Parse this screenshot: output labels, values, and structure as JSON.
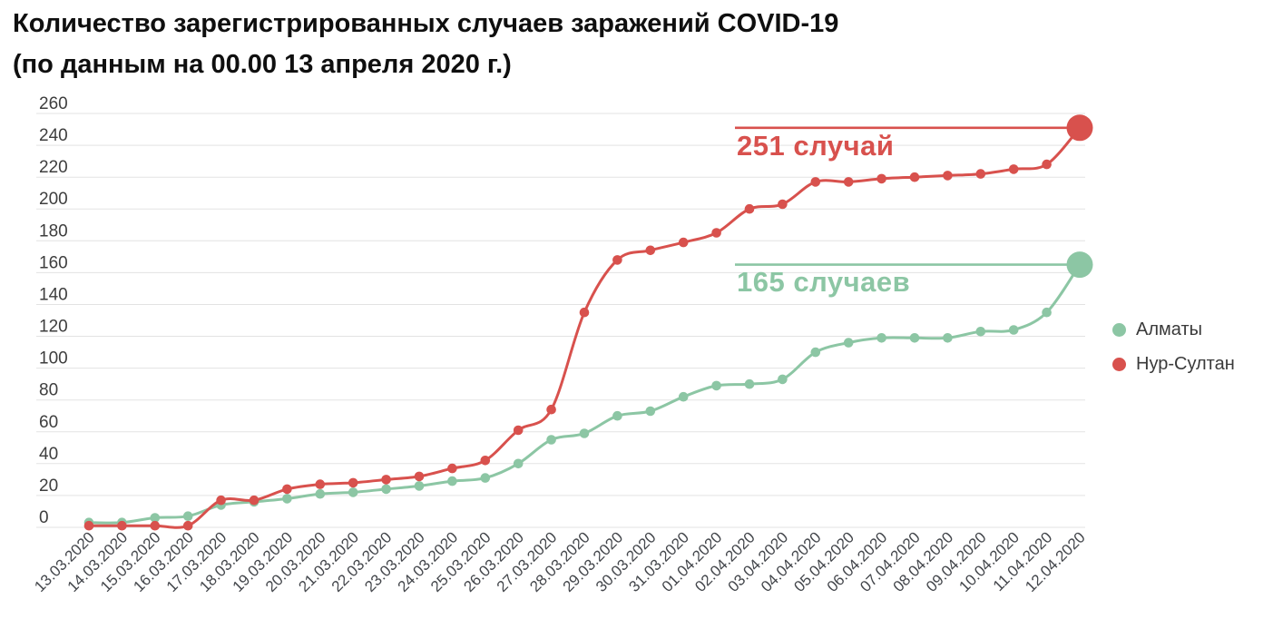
{
  "title": {
    "line1": "Количество зарегистрированных случаев заражений COVID-19",
    "line2": "(по данным на 00.00 13 апреля 2020 г.)"
  },
  "colors": {
    "almaty": "#8cc6a4",
    "nur_sultan": "#d8514d",
    "grid": "#e3e3e3",
    "y_label_text": "#3e3e3e",
    "x_label_text": "#43464b",
    "title_text": "#0f0f0f",
    "background": "#ffffff"
  },
  "legend": {
    "items": [
      {
        "label": "Алматы",
        "color": "#8cc6a4"
      },
      {
        "label": "Нур-Султан",
        "color": "#d8514d"
      }
    ]
  },
  "annotations": [
    {
      "label": "251 случай",
      "series": "Нур-Султан",
      "value": 251,
      "color": "#d8514d"
    },
    {
      "label": "165 случаев",
      "series": "Алматы",
      "value": 165,
      "color": "#8cc6a4"
    }
  ],
  "chart_data": {
    "type": "line",
    "title": "Количество зарегистрированных случаев заражений COVID-19",
    "subtitle": "(по данным на 00.00 13 апреля 2020 г.)",
    "xlabel": "",
    "ylabel": "",
    "ylim": [
      0,
      260
    ],
    "ytick_step": 20,
    "grid": "horizontal",
    "legend_position": "right",
    "categories": [
      "13.03.2020",
      "14.03.2020",
      "15.03.2020",
      "16.03.2020",
      "17.03.2020",
      "18.03.2020",
      "19.03.2020",
      "20.03.2020",
      "21.03.2020",
      "22.03.2020",
      "23.03.2020",
      "24.03.2020",
      "25.03.2020",
      "26.03.2020",
      "27.03.2020",
      "28.03.2020",
      "29.03.2020",
      "30.03.2020",
      "31.03.2020",
      "01.04.2020",
      "02.04.2020",
      "03.04.2020",
      "04.04.2020",
      "05.04.2020",
      "06.04.2020",
      "07.04.2020",
      "08.04.2020",
      "09.04.2020",
      "10.04.2020",
      "11.04.2020",
      "12.04.2020"
    ],
    "series": [
      {
        "name": "Алматы",
        "color": "#8cc6a4",
        "values": [
          3,
          3,
          6,
          7,
          14,
          16,
          18,
          21,
          22,
          24,
          26,
          29,
          31,
          40,
          55,
          59,
          70,
          73,
          82,
          89,
          90,
          93,
          110,
          116,
          119,
          119,
          119,
          123,
          124,
          135,
          165
        ]
      },
      {
        "name": "Нур-Султан",
        "color": "#d8514d",
        "values": [
          1,
          1,
          1,
          1,
          17,
          17,
          24,
          27,
          28,
          30,
          32,
          37,
          42,
          61,
          74,
          135,
          168,
          174,
          179,
          185,
          200,
          203,
          217,
          217,
          219,
          220,
          221,
          222,
          225,
          228,
          251
        ]
      }
    ]
  }
}
